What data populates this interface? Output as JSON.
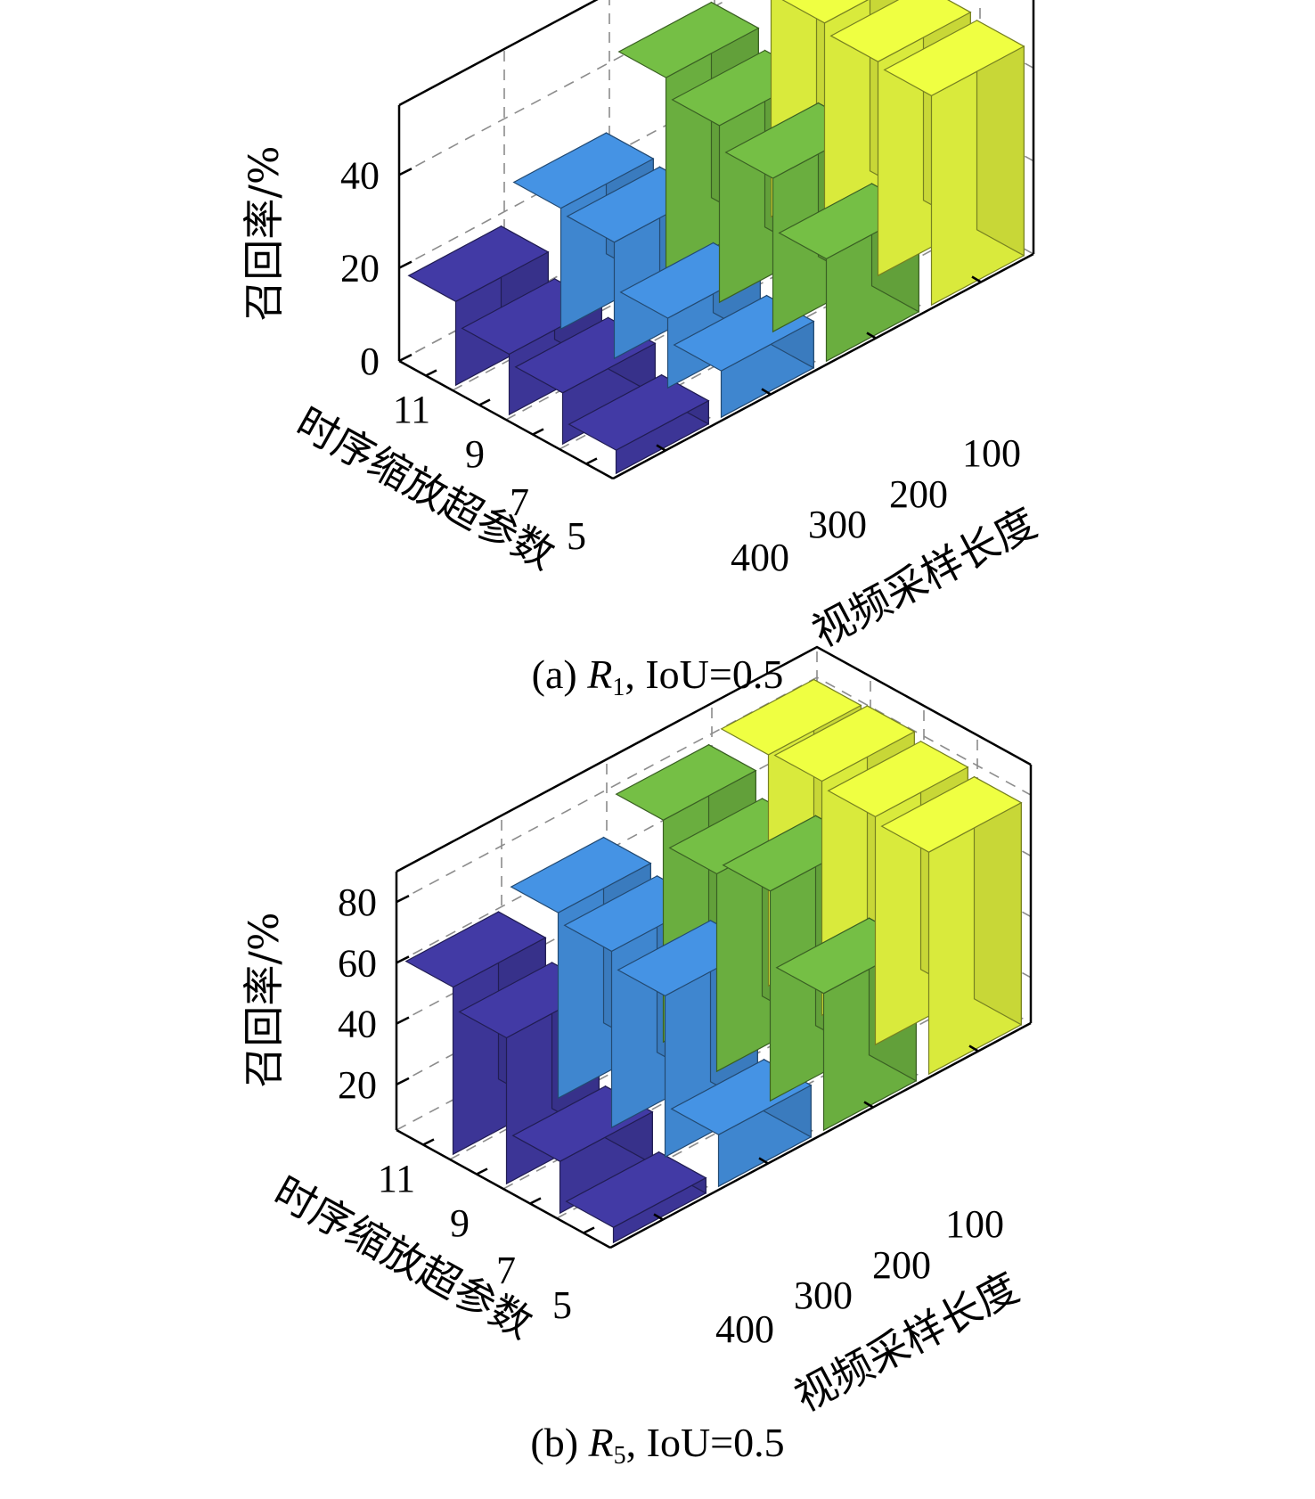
{
  "chart_data": [
    {
      "type": "bar3d",
      "caption": {
        "prefix": "(a) ",
        "symbol": "R",
        "subscript": "1",
        "suffix": ", IoU=0.5"
      },
      "zlabel": "召回率/%",
      "xlabel": "视频采样长度",
      "ylabel": "时序缩放超参数",
      "x_categories": [
        "100",
        "200",
        "300",
        "400"
      ],
      "y_categories": [
        "11",
        "9",
        "7",
        "5"
      ],
      "zticks": [
        "0",
        "20",
        "40"
      ],
      "zlim": [
        0,
        55
      ],
      "grid": true,
      "colors": [
        "#d9ea3c",
        "#6aae3f",
        "#3f86cf",
        "#3c3596"
      ],
      "values": [
        [
          49,
          42,
          26,
          18
        ],
        [
          48,
          38,
          25,
          13
        ],
        [
          46,
          33,
          15,
          11
        ],
        [
          45,
          22,
          10,
          5
        ]
      ]
    },
    {
      "type": "bar3d",
      "caption": {
        "prefix": "(b) ",
        "symbol": "R",
        "subscript": "5",
        "suffix": ", IoU=0.5"
      },
      "zlabel": "召回率/%",
      "xlabel": "视频采样长度",
      "ylabel": "时序缩放超参数",
      "x_categories": [
        "100",
        "200",
        "300",
        "400"
      ],
      "y_categories": [
        "11",
        "9",
        "7",
        "5"
      ],
      "zticks": [
        "20",
        "40",
        "60",
        "80"
      ],
      "zlim": [
        5,
        90
      ],
      "grid": true,
      "colors": [
        "#d9ea3c",
        "#6aae3f",
        "#3f86cf",
        "#3c3596"
      ],
      "values": [
        [
          81,
          78,
          66,
          60
        ],
        [
          82,
          70,
          63,
          53
        ],
        [
          80,
          74,
          58,
          22
        ],
        [
          78,
          50,
          22,
          10
        ]
      ]
    }
  ]
}
